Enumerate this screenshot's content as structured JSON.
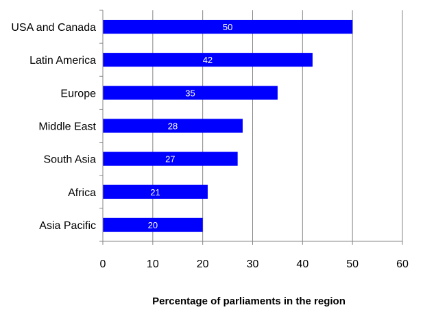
{
  "chart_data": {
    "type": "bar",
    "orientation": "horizontal",
    "categories": [
      "USA and Canada",
      "Latin America",
      "Europe",
      "Middle East",
      "South Asia",
      "Africa",
      "Asia Pacific"
    ],
    "values": [
      50,
      42,
      35,
      28,
      27,
      21,
      20
    ],
    "data_labels": [
      "50",
      "42",
      "35",
      "28",
      "27",
      "21",
      "20"
    ],
    "x_ticks": [
      "0",
      "10",
      "20",
      "30",
      "40",
      "50",
      "60"
    ],
    "xlim": [
      0,
      60
    ],
    "xlabel": "Percentage of parliaments in the region",
    "ylabel": "",
    "title": "",
    "grid": "vertical major gridlines",
    "legend": "none",
    "bar_color": "#0000FF",
    "data_label_color": "#FFFFFF",
    "gridline_color": "#868686"
  }
}
